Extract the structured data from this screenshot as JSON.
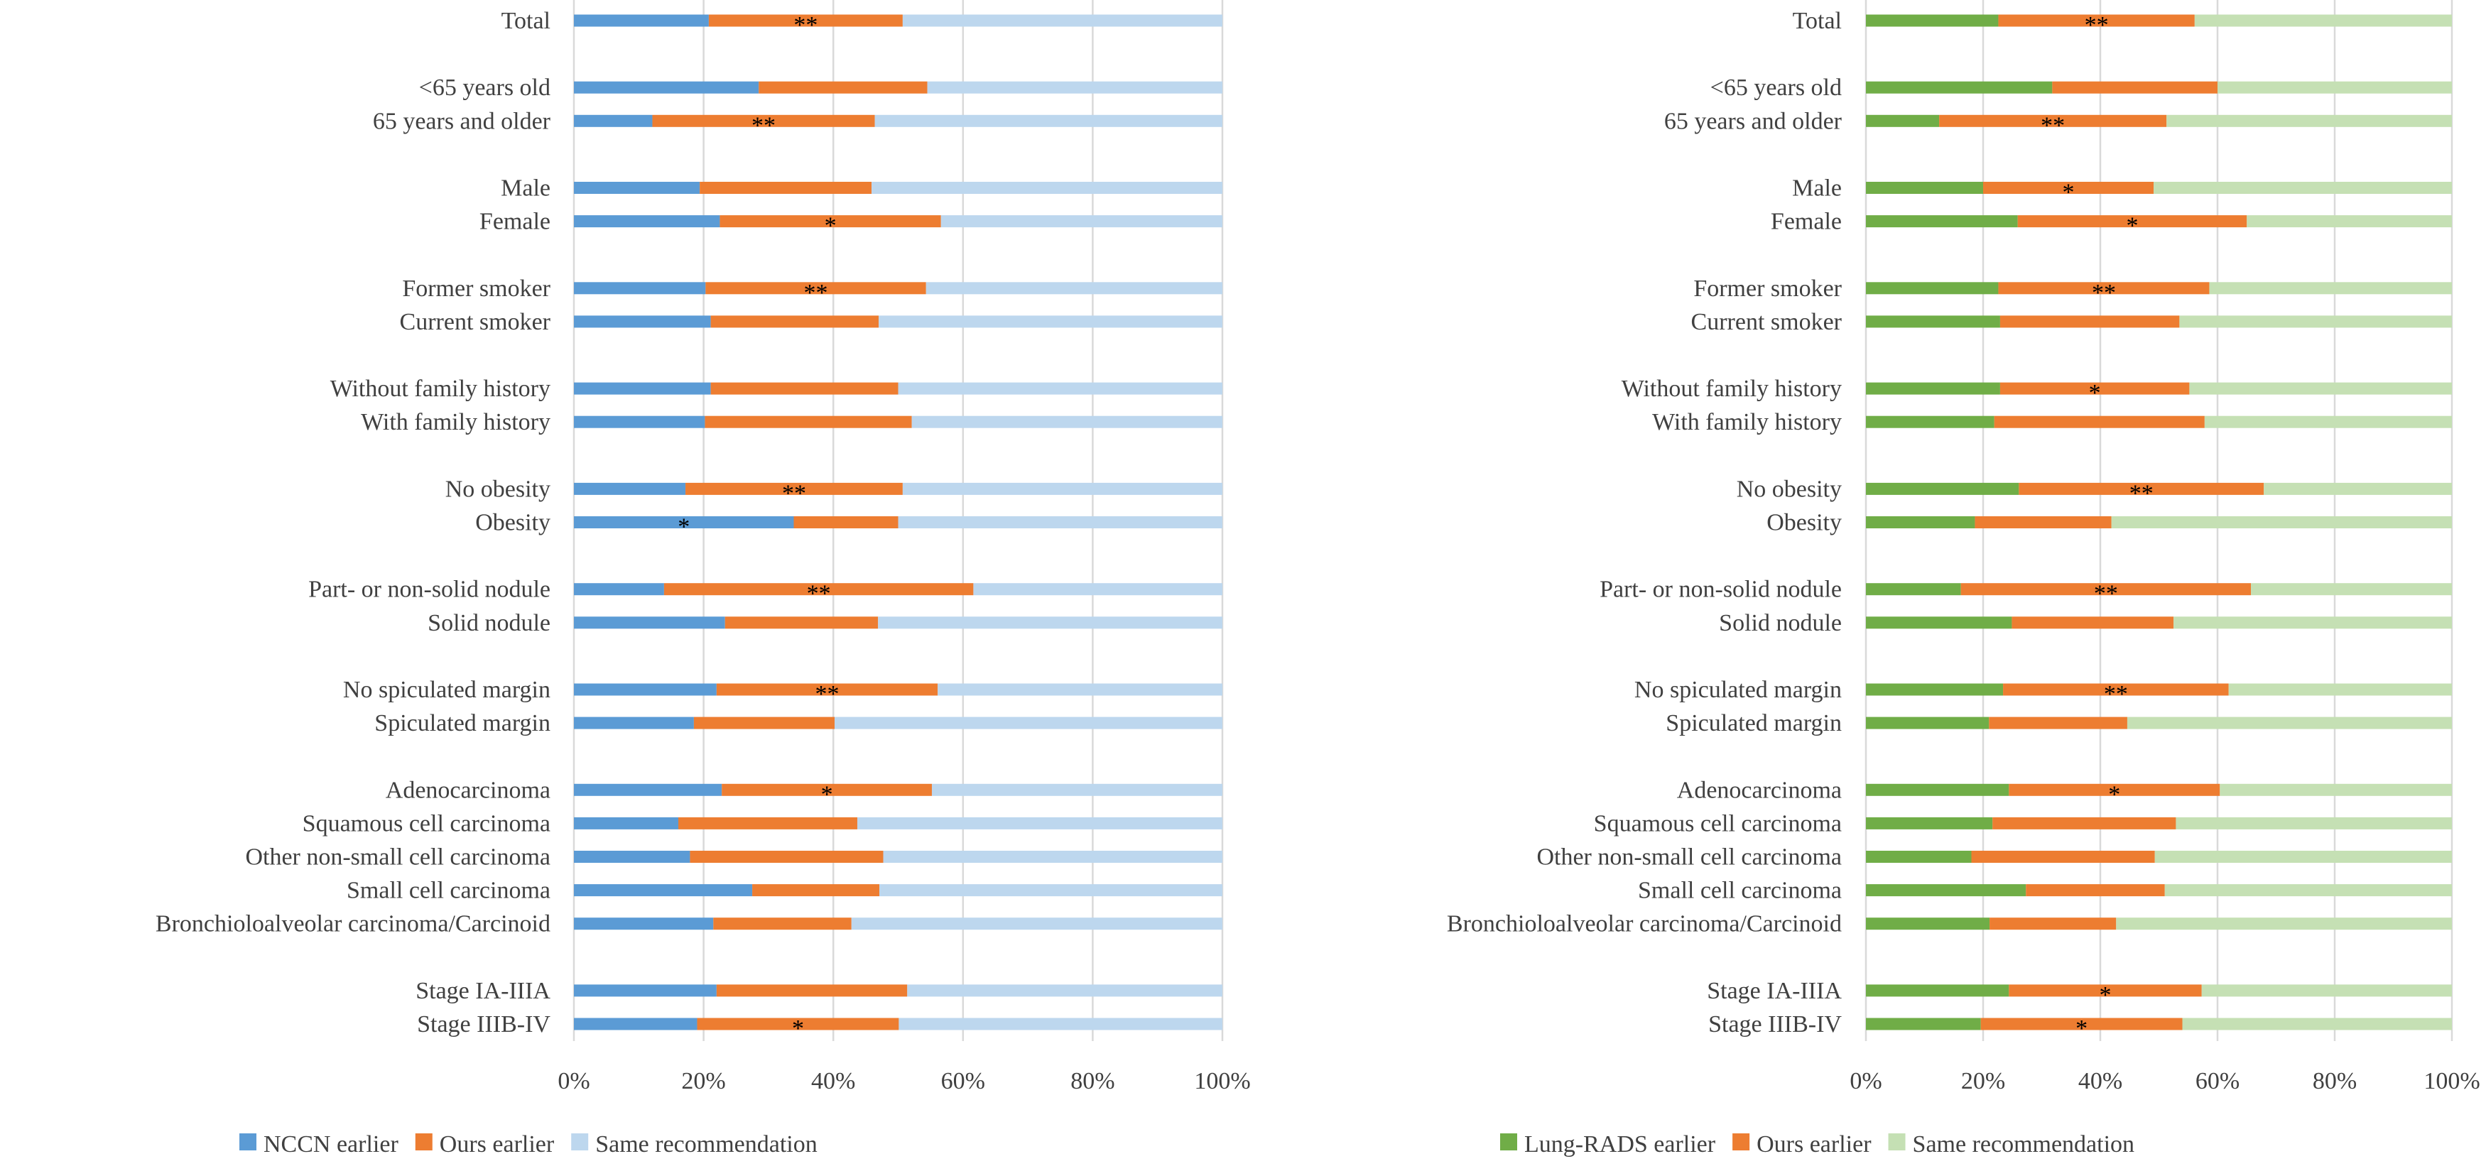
{
  "chart_data": [
    {
      "type": "bar",
      "orientation": "horizontal",
      "stacked": "percent",
      "categories": [
        "Total",
        "<65 years old",
        "65 years and older",
        "Male",
        "Female",
        "Former smoker",
        "Current smoker",
        "Without family history",
        "With family history",
        "No obesity",
        "Obesity",
        "Part- or non-solid nodule",
        "Solid nodule",
        "No spiculated margin",
        "Spiculated margin",
        "Adenocarcinoma",
        "Squamous cell carcinoma",
        "Other non-small cell carcinoma",
        "Small cell carcinoma",
        "Bronchioloalveolar carcinoma/Carcinoid",
        "Stage IA-IIIA",
        "Stage IIIB-IV"
      ],
      "groups": [
        [
          0
        ],
        [
          1,
          2
        ],
        [
          3,
          4
        ],
        [
          5,
          6
        ],
        [
          7,
          8
        ],
        [
          9,
          10
        ],
        [
          11,
          12
        ],
        [
          13,
          14
        ],
        [
          15,
          16,
          17,
          18,
          19
        ],
        [
          20,
          21
        ]
      ],
      "series": [
        {
          "name": "NCCN earlier",
          "color": "#5b9bd5",
          "values": [
            20.8,
            28.5,
            12.1,
            19.4,
            22.5,
            20.3,
            21.1,
            21.1,
            20.2,
            17.2,
            33.9,
            13.9,
            23.3,
            22.0,
            18.5,
            22.8,
            16.1,
            17.9,
            27.5,
            21.5,
            22.0,
            19.0
          ]
        },
        {
          "name": "Ours earlier",
          "color": "#ed7d31",
          "values": [
            29.9,
            26.0,
            34.3,
            26.5,
            34.1,
            34.0,
            25.9,
            28.9,
            31.9,
            33.5,
            16.1,
            47.7,
            23.6,
            34.1,
            21.7,
            32.4,
            27.6,
            29.8,
            19.6,
            21.3,
            29.4,
            31.1
          ]
        },
        {
          "name": "Same recommendation",
          "color": "#bdd7ee",
          "values": [
            49.3,
            45.5,
            53.6,
            54.1,
            43.4,
            45.7,
            53.0,
            50.0,
            47.9,
            49.3,
            50.0,
            38.4,
            53.1,
            43.9,
            59.8,
            44.8,
            56.3,
            52.3,
            52.9,
            57.2,
            48.6,
            49.9
          ]
        }
      ],
      "annotations": [
        {
          "category": 0,
          "series": 1,
          "text": "**"
        },
        {
          "category": 2,
          "series": 1,
          "text": "**"
        },
        {
          "category": 4,
          "series": 1,
          "text": "*"
        },
        {
          "category": 5,
          "series": 1,
          "text": "**"
        },
        {
          "category": 9,
          "series": 1,
          "text": "**"
        },
        {
          "category": 10,
          "series": 0,
          "text": "*"
        },
        {
          "category": 11,
          "series": 1,
          "text": "**"
        },
        {
          "category": 13,
          "series": 1,
          "text": "**"
        },
        {
          "category": 15,
          "series": 1,
          "text": "*"
        },
        {
          "category": 21,
          "series": 1,
          "text": "*"
        }
      ],
      "xticks": [
        "0%",
        "20%",
        "40%",
        "60%",
        "80%",
        "100%"
      ],
      "xlim": [
        0,
        100
      ],
      "grid": true,
      "legend": "bottom"
    },
    {
      "type": "bar",
      "orientation": "horizontal",
      "stacked": "percent",
      "categories": [
        "Total",
        "<65 years old",
        "65 years and older",
        "Male",
        "Female",
        "Former smoker",
        "Current smoker",
        "Without family history",
        "With family history",
        "No obesity",
        "Obesity",
        "Part- or non-solid nodule",
        "Solid nodule",
        "No spiculated margin",
        "Spiculated margin",
        "Adenocarcinoma",
        "Squamous cell carcinoma",
        "Other non-small cell carcinoma",
        "Small cell carcinoma",
        "Bronchioloalveolar carcinoma/Carcinoid",
        "Stage IA-IIIA",
        "Stage IIIB-IV"
      ],
      "groups": [
        [
          0
        ],
        [
          1,
          2
        ],
        [
          3,
          4
        ],
        [
          5,
          6
        ],
        [
          7,
          8
        ],
        [
          9,
          10
        ],
        [
          11,
          12
        ],
        [
          13,
          14
        ],
        [
          15,
          16,
          17,
          18,
          19
        ],
        [
          20,
          21
        ]
      ],
      "series": [
        {
          "name": "Lung-RADS earlier",
          "color": "#70ad47",
          "values": [
            22.6,
            31.8,
            12.5,
            20.0,
            25.9,
            22.6,
            22.9,
            22.9,
            21.9,
            26.1,
            18.6,
            16.2,
            24.9,
            23.4,
            21.0,
            24.4,
            21.6,
            18.0,
            27.3,
            21.1,
            24.4,
            19.6
          ]
        },
        {
          "name": "Ours earlier",
          "color": "#ed7d31",
          "values": [
            33.5,
            28.2,
            38.8,
            29.1,
            39.1,
            36.0,
            30.6,
            32.3,
            35.9,
            41.8,
            23.3,
            49.5,
            27.6,
            38.5,
            23.6,
            36.0,
            31.3,
            31.3,
            23.7,
            21.6,
            32.9,
            34.4
          ]
        },
        {
          "name": "Same recommendation",
          "color": "#c5e0b4",
          "values": [
            43.9,
            40.0,
            48.7,
            50.9,
            35.0,
            41.4,
            46.5,
            44.8,
            42.2,
            32.1,
            58.1,
            34.3,
            47.5,
            38.1,
            55.4,
            39.6,
            47.1,
            50.7,
            49.0,
            57.3,
            42.7,
            46.0
          ]
        }
      ],
      "annotations": [
        {
          "category": 0,
          "series": 1,
          "text": "**"
        },
        {
          "category": 2,
          "series": 1,
          "text": "**"
        },
        {
          "category": 3,
          "series": 1,
          "text": "*"
        },
        {
          "category": 4,
          "series": 1,
          "text": "*"
        },
        {
          "category": 5,
          "series": 1,
          "text": "**"
        },
        {
          "category": 7,
          "series": 1,
          "text": "*"
        },
        {
          "category": 9,
          "series": 1,
          "text": "**"
        },
        {
          "category": 11,
          "series": 1,
          "text": "**"
        },
        {
          "category": 13,
          "series": 1,
          "text": "**"
        },
        {
          "category": 15,
          "series": 1,
          "text": "*"
        },
        {
          "category": 20,
          "series": 1,
          "text": "*"
        },
        {
          "category": 21,
          "series": 1,
          "text": "*"
        }
      ],
      "xticks": [
        "0%",
        "20%",
        "40%",
        "60%",
        "80%",
        "100%"
      ],
      "xlim": [
        0,
        100
      ],
      "grid": true,
      "legend": "bottom"
    }
  ]
}
